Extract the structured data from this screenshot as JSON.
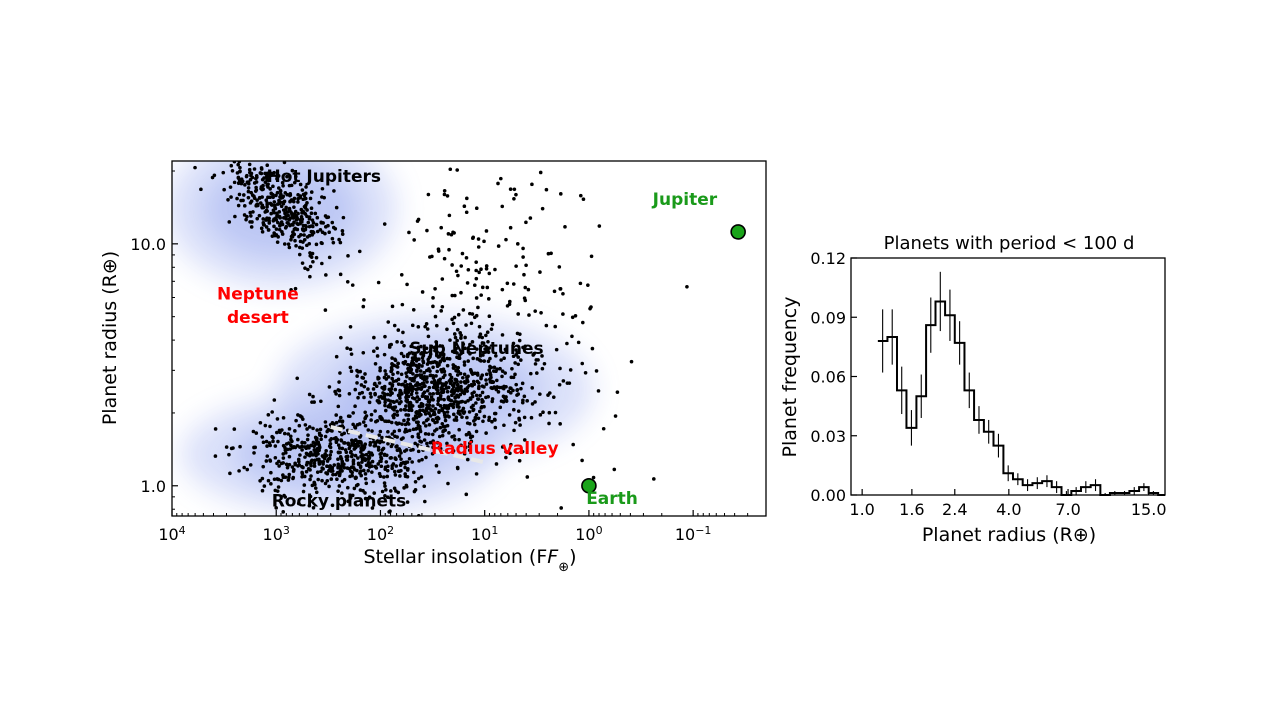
{
  "chart_data": [
    {
      "type": "scatter",
      "xlabel": "Stellar insolation (F",
      "xlabel_sub": "⊕",
      "xlabel_close": ")",
      "ylabel": "Planet radius (R⊕)",
      "x_scale": "log",
      "x_reversed": true,
      "y_scale": "log",
      "xlim": [
        10000,
        0.02
      ],
      "ylim": [
        0.75,
        22
      ],
      "x_ticks": [
        {
          "value": 10000,
          "base": "10",
          "exp": "4"
        },
        {
          "value": 1000,
          "base": "10",
          "exp": "3"
        },
        {
          "value": 100,
          "base": "10",
          "exp": "2"
        },
        {
          "value": 10,
          "base": "10",
          "exp": "1"
        },
        {
          "value": 1,
          "base": "10",
          "exp": "0"
        },
        {
          "value": 0.1,
          "base": "10",
          "exp": "−1"
        }
      ],
      "y_ticks": [
        {
          "value": 1.0,
          "label": "1.0"
        },
        {
          "value": 10.0,
          "label": "10.0"
        }
      ],
      "grid": false,
      "annotations": [
        {
          "text": "Hot Jupiters",
          "x": 350,
          "y": 18,
          "color": "#000000"
        },
        {
          "text": "Neptune",
          "x": 1500,
          "y": 5.9,
          "color": "#ff0000"
        },
        {
          "text": "desert",
          "x": 1500,
          "y": 4.7,
          "color": "#ff0000"
        },
        {
          "text": "Sub Neptunes",
          "x": 12,
          "y": 3.5,
          "color": "#000000"
        },
        {
          "text": "Radius valley",
          "x": 8,
          "y": 1.35,
          "color": "#ff0000"
        },
        {
          "text": "Rocky planets",
          "x": 250,
          "y": 0.82,
          "color": "#000000"
        },
        {
          "text": "Jupiter",
          "x": 0.12,
          "y": 14.5,
          "color": "#1a9a1a"
        },
        {
          "text": "Earth",
          "x": 0.6,
          "y": 0.84,
          "color": "#1a9a1a"
        }
      ],
      "highlight_points": [
        {
          "name": "Jupiter",
          "x": 0.037,
          "y": 11.2,
          "color": "#1aa41a"
        },
        {
          "name": "Earth",
          "x": 1.0,
          "y": 1.0,
          "color": "#1aa41a"
        }
      ],
      "density_color": "#6f86e8",
      "point_color": "#000000",
      "radius_valley_line": {
        "x": [
          300,
          10
        ],
        "y": [
          1.75,
          1.25
        ],
        "color": "#e8e8e8"
      },
      "clusters": [
        {
          "name": "hot-jupiters",
          "x_center": 900,
          "x_spread": 0.55,
          "y_center": 14,
          "y_spread": 0.13,
          "count": 420
        },
        {
          "name": "sub-neptunes",
          "x_center": 30,
          "x_spread": 0.75,
          "y_center": 2.5,
          "y_spread": 0.12,
          "count": 800
        },
        {
          "name": "rocky",
          "x_center": 250,
          "x_spread": 0.75,
          "y_center": 1.35,
          "y_spread": 0.1,
          "count": 620
        },
        {
          "name": "scattered",
          "x_center": 10,
          "x_spread": 1.1,
          "y_center": 4.5,
          "y_spread": 0.4,
          "count": 320
        }
      ]
    },
    {
      "type": "line",
      "style": "step",
      "title": "Planets with period < 100 d",
      "xlabel": "Planet radius (R⊕)",
      "ylabel": "Planet frequency",
      "x_scale": "log",
      "xlim": [
        0.9,
        17.5
      ],
      "ylim": [
        0.0,
        0.12
      ],
      "x_ticks": [
        {
          "value": 1.0,
          "label": "1.0"
        },
        {
          "value": 1.6,
          "label": "1.6"
        },
        {
          "value": 2.4,
          "label": "2.4"
        },
        {
          "value": 4.0,
          "label": "4.0"
        },
        {
          "value": 7.0,
          "label": "7.0"
        },
        {
          "value": 15.0,
          "label": "15.0"
        }
      ],
      "y_ticks": [
        {
          "value": 0.0,
          "label": "0.00"
        },
        {
          "value": 0.03,
          "label": "0.03"
        },
        {
          "value": 0.06,
          "label": "0.06"
        },
        {
          "value": 0.09,
          "label": "0.09"
        },
        {
          "value": 0.12,
          "label": "0.12"
        }
      ],
      "grid": false,
      "bins": [
        {
          "x0": 1.16,
          "x1": 1.27,
          "y": 0.078,
          "err": 0.016
        },
        {
          "x0": 1.27,
          "x1": 1.39,
          "y": 0.08,
          "err": 0.014
        },
        {
          "x0": 1.39,
          "x1": 1.52,
          "y": 0.053,
          "err": 0.012
        },
        {
          "x0": 1.52,
          "x1": 1.67,
          "y": 0.034,
          "err": 0.009
        },
        {
          "x0": 1.67,
          "x1": 1.83,
          "y": 0.05,
          "err": 0.011
        },
        {
          "x0": 1.83,
          "x1": 2.0,
          "y": 0.086,
          "err": 0.014
        },
        {
          "x0": 2.0,
          "x1": 2.19,
          "y": 0.098,
          "err": 0.015
        },
        {
          "x0": 2.19,
          "x1": 2.4,
          "y": 0.091,
          "err": 0.013
        },
        {
          "x0": 2.4,
          "x1": 2.63,
          "y": 0.077,
          "err": 0.011
        },
        {
          "x0": 2.63,
          "x1": 2.88,
          "y": 0.053,
          "err": 0.009
        },
        {
          "x0": 2.88,
          "x1": 3.16,
          "y": 0.038,
          "err": 0.007
        },
        {
          "x0": 3.16,
          "x1": 3.46,
          "y": 0.032,
          "err": 0.006
        },
        {
          "x0": 3.46,
          "x1": 3.8,
          "y": 0.025,
          "err": 0.006
        },
        {
          "x0": 3.8,
          "x1": 4.16,
          "y": 0.011,
          "err": 0.004
        },
        {
          "x0": 4.16,
          "x1": 4.56,
          "y": 0.008,
          "err": 0.003
        },
        {
          "x0": 4.56,
          "x1": 5.0,
          "y": 0.005,
          "err": 0.003
        },
        {
          "x0": 5.0,
          "x1": 5.48,
          "y": 0.006,
          "err": 0.003
        },
        {
          "x0": 5.48,
          "x1": 6.0,
          "y": 0.007,
          "err": 0.003
        },
        {
          "x0": 6.0,
          "x1": 6.58,
          "y": 0.004,
          "err": 0.003
        },
        {
          "x0": 6.58,
          "x1": 7.22,
          "y": 0.0,
          "err": 0.002
        },
        {
          "x0": 7.22,
          "x1": 7.91,
          "y": 0.002,
          "err": 0.002
        },
        {
          "x0": 7.91,
          "x1": 8.67,
          "y": 0.004,
          "err": 0.003
        },
        {
          "x0": 8.67,
          "x1": 9.5,
          "y": 0.005,
          "err": 0.003
        },
        {
          "x0": 9.5,
          "x1": 10.4,
          "y": 0.0,
          "err": 0.001
        },
        {
          "x0": 10.4,
          "x1": 11.4,
          "y": 0.001,
          "err": 0.001
        },
        {
          "x0": 11.4,
          "x1": 12.5,
          "y": 0.001,
          "err": 0.001
        },
        {
          "x0": 12.5,
          "x1": 13.7,
          "y": 0.002,
          "err": 0.002
        },
        {
          "x0": 13.7,
          "x1": 15.0,
          "y": 0.004,
          "err": 0.002
        },
        {
          "x0": 15.0,
          "x1": 16.4,
          "y": 0.001,
          "err": 0.001
        },
        {
          "x0": 16.4,
          "x1": 17.5,
          "y": 0.0,
          "err": 0.0
        }
      ]
    }
  ]
}
